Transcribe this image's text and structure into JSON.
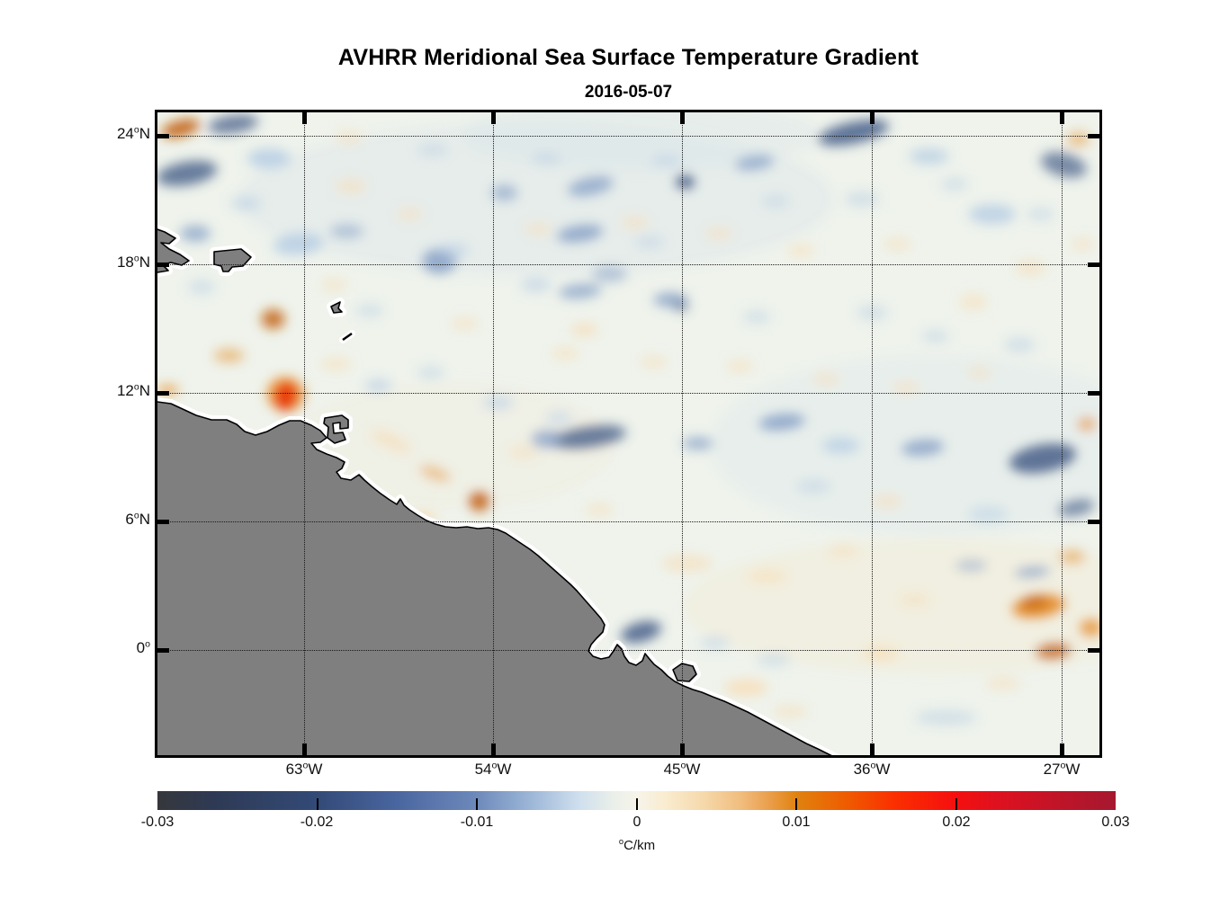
{
  "figure": {
    "title": "AVHRR Meridional Sea Surface Temperature Gradient",
    "date": "2016-05-07"
  },
  "degree": "o",
  "axes": {
    "x": {
      "ticks": [
        {
          "num": "63",
          "dir": "W"
        },
        {
          "num": "54",
          "dir": "W"
        },
        {
          "num": "45",
          "dir": "W"
        },
        {
          "num": "36",
          "dir": "W"
        },
        {
          "num": "27",
          "dir": "W"
        }
      ]
    },
    "y": {
      "ticks": [
        {
          "num": "24",
          "dir": "N"
        },
        {
          "num": "18",
          "dir": "N"
        },
        {
          "num": "12",
          "dir": "N"
        },
        {
          "num": "6",
          "dir": "N"
        },
        {
          "num": "0",
          "dir": ""
        }
      ]
    }
  },
  "colorbar": {
    "ticks": [
      "-0.03",
      "-0.02",
      "-0.01",
      "0",
      "0.01",
      "0.02",
      "0.03"
    ],
    "unit_text": "C/km"
  },
  "chart_data": {
    "type": "heatmap",
    "title": "AVHRR Meridional Sea Surface Temperature Gradient",
    "subtitle": "2016-05-07",
    "variable": "meridional sea surface temperature gradient",
    "units": "degC/km",
    "lon_range_deg_west": [
      70.0,
      25.2
    ],
    "lat_range_deg_north": [
      -4.95,
      25.05
    ],
    "x_tick_lons_deg_west": [
      63,
      54,
      45,
      36,
      27
    ],
    "y_tick_lats_deg_north": [
      24,
      18,
      12,
      6,
      0
    ],
    "grid": true,
    "land_color": "#7f7f7f",
    "coast_outline_color": "#000000",
    "coast_nodata_halo_color": "#ffffff",
    "ocean_background": "#eff3ec",
    "colorbar": {
      "min": -0.03,
      "max": 0.03,
      "tick_values": [
        -0.03,
        -0.02,
        -0.01,
        0,
        0.01,
        0.02,
        0.03
      ],
      "label": "degC/km",
      "orientation": "horizontal",
      "stops": [
        {
          "p": 0.0,
          "c": "#35373b"
        },
        {
          "p": 0.06,
          "c": "#2e3a55"
        },
        {
          "p": 0.167,
          "c": "#334a77"
        },
        {
          "p": 0.25,
          "c": "#4a66a0"
        },
        {
          "p": 0.333,
          "c": "#6d89ba"
        },
        {
          "p": 0.39,
          "c": "#9db7d8"
        },
        {
          "p": 0.44,
          "c": "#cfdfee"
        },
        {
          "p": 0.475,
          "c": "#e9efe9"
        },
        {
          "p": 0.5,
          "c": "#f7f4ea"
        },
        {
          "p": 0.53,
          "c": "#f9ecd0"
        },
        {
          "p": 0.57,
          "c": "#f6d9ab"
        },
        {
          "p": 0.61,
          "c": "#f0bc7c"
        },
        {
          "p": 0.64,
          "c": "#ea9d48"
        },
        {
          "p": 0.667,
          "c": "#e0820f"
        },
        {
          "p": 0.72,
          "c": "#ef5b00"
        },
        {
          "p": 0.77,
          "c": "#fb2e00"
        },
        {
          "p": 0.833,
          "c": "#f50f0f"
        },
        {
          "p": 0.88,
          "c": "#dd1120"
        },
        {
          "p": 0.94,
          "c": "#c01428"
        },
        {
          "p": 1.0,
          "c": "#a5182f"
        }
      ]
    },
    "palette": {
      "deep_blue": "#465e88",
      "blue": "#7e9ac3",
      "light_blue": "#b9cfe4",
      "peach": "#f7dcb4",
      "orange": "#e68f2b",
      "deep_orange": "#c2600e",
      "red": "#e8380e"
    },
    "features_note": "approximate gradient anomalies [lon_degE, lat_degN, rx_px, ry_px, color_key, opacity, rotation_deg]; blue = negative, orange/red = positive",
    "features": [
      [
        -52,
        21,
        330,
        85,
        "light_blue",
        0.16,
        0
      ],
      [
        -33,
        9.5,
        250,
        100,
        "light_blue",
        0.13,
        0
      ],
      [
        -33,
        2,
        280,
        75,
        "peach",
        0.18,
        0
      ],
      [
        -56,
        9.5,
        180,
        70,
        "peach",
        0.1,
        0
      ],
      [
        -47,
        24,
        200,
        40,
        "light_blue",
        0.15,
        0
      ],
      [
        -68.9,
        24.3,
        22,
        9,
        "deep_orange",
        0.9,
        -15
      ],
      [
        -66.4,
        24.5,
        28,
        10,
        "deep_blue",
        0.75,
        -8
      ],
      [
        -68.6,
        22.2,
        34,
        13,
        "deep_blue",
        0.8,
        -10
      ],
      [
        -64.7,
        22.9,
        24,
        11,
        "light_blue",
        0.9,
        0
      ],
      [
        -68.2,
        19.4,
        17,
        9,
        "blue",
        0.7,
        0
      ],
      [
        -63.3,
        18.9,
        28,
        12,
        "light_blue",
        0.9,
        -5
      ],
      [
        -56.6,
        18.1,
        19,
        14,
        "blue",
        0.8,
        0
      ],
      [
        -53.5,
        21.3,
        15,
        9,
        "blue",
        0.6,
        0
      ],
      [
        -49.9,
        19.4,
        26,
        9,
        "blue",
        0.8,
        -8
      ],
      [
        -49.4,
        21.6,
        26,
        10,
        "blue",
        0.7,
        -12
      ],
      [
        -44.9,
        21.8,
        11,
        8,
        "deep_blue",
        0.95,
        0
      ],
      [
        -41.6,
        22.7,
        22,
        8,
        "blue",
        0.7,
        -8
      ],
      [
        -36.9,
        24.1,
        40,
        12,
        "deep_blue",
        0.85,
        -12
      ],
      [
        -33.3,
        23.0,
        22,
        9,
        "light_blue",
        0.8,
        0
      ],
      [
        -26.9,
        22.6,
        26,
        13,
        "deep_blue",
        0.7,
        15
      ],
      [
        -30.3,
        20.3,
        26,
        11,
        "light_blue",
        0.85,
        0
      ],
      [
        -49.9,
        16.7,
        24,
        8,
        "blue",
        0.7,
        -5
      ],
      [
        -45.6,
        16.3,
        19,
        8,
        "blue",
        0.75,
        0
      ],
      [
        -45.1,
        16.0,
        8,
        5,
        "deep_blue",
        0.7,
        0
      ],
      [
        -64.5,
        15.4,
        13,
        11,
        "deep_orange",
        0.85,
        0
      ],
      [
        -66.6,
        13.7,
        17,
        8,
        "orange",
        0.5,
        0
      ],
      [
        -63.9,
        11.9,
        21,
        19,
        "orange",
        0.85,
        10
      ],
      [
        -63.9,
        11.8,
        12,
        16,
        "red",
        1,
        10
      ],
      [
        -69.5,
        12.1,
        12,
        5,
        "orange",
        0.8,
        0
      ],
      [
        -59.5,
        12.3,
        15,
        7,
        "light_blue",
        0.7,
        0
      ],
      [
        -49.5,
        9.9,
        42,
        12,
        "deep_blue",
        0.8,
        -8
      ],
      [
        -51.5,
        9.8,
        17,
        10,
        "blue",
        0.7,
        0
      ],
      [
        -44.3,
        9.6,
        17,
        7,
        "blue",
        0.7,
        0
      ],
      [
        -40.3,
        10.6,
        26,
        9,
        "blue",
        0.8,
        -6
      ],
      [
        -37.5,
        9.5,
        21,
        9,
        "light_blue",
        0.8,
        0
      ],
      [
        -33.6,
        9.4,
        24,
        9,
        "blue",
        0.75,
        -5
      ],
      [
        -27.9,
        8.9,
        38,
        16,
        "deep_blue",
        0.85,
        -10
      ],
      [
        -26.3,
        6.6,
        21,
        9,
        "deep_blue",
        0.65,
        -12
      ],
      [
        -54.7,
        6.9,
        12,
        11,
        "deep_orange",
        0.9,
        0
      ],
      [
        -57.4,
        6.1,
        15,
        7,
        "peach",
        0.9,
        0
      ],
      [
        -58.9,
        9.7,
        24,
        7,
        "peach",
        0.65,
        25
      ],
      [
        -56.8,
        8.2,
        18,
        7,
        "orange",
        0.45,
        20
      ],
      [
        -47.0,
        0.8,
        23,
        11,
        "deep_blue",
        0.85,
        -15
      ],
      [
        -28.1,
        2.0,
        30,
        13,
        "orange",
        0.95,
        -8
      ],
      [
        -28.3,
        2.2,
        15,
        8,
        "deep_orange",
        0.75,
        -8
      ],
      [
        -28.4,
        3.6,
        20,
        6,
        "blue",
        0.7,
        -5
      ],
      [
        -27.4,
        -0.1,
        20,
        9,
        "deep_orange",
        0.8,
        -5
      ],
      [
        -25.6,
        1.0,
        13,
        10,
        "orange",
        0.8,
        0
      ],
      [
        -42.0,
        -1.8,
        24,
        9,
        "peach",
        0.8,
        0
      ],
      [
        -35.6,
        -0.2,
        20,
        8,
        "peach",
        0.7,
        0
      ],
      [
        -31.3,
        3.9,
        18,
        7,
        "blue",
        0.45,
        0
      ],
      [
        -32.5,
        -3.2,
        34,
        8,
        "light_blue",
        0.55,
        0
      ],
      [
        -30.5,
        6.3,
        22,
        9,
        "light_blue",
        0.55,
        0
      ],
      [
        -49.7,
        14.9,
        15,
        7,
        "peach",
        0.7,
        0
      ],
      [
        -60.8,
        21.6,
        17,
        8,
        "peach",
        0.55,
        0
      ],
      [
        -58.0,
        20.3,
        14,
        7,
        "peach",
        0.5,
        0
      ],
      [
        -51.9,
        19.6,
        15,
        7,
        "peach",
        0.5,
        0
      ],
      [
        -47.3,
        19.9,
        15,
        7,
        "peach",
        0.55,
        0
      ],
      [
        -43.3,
        19.4,
        15,
        7,
        "peach",
        0.5,
        0
      ],
      [
        -39.4,
        18.6,
        15,
        7,
        "peach",
        0.55,
        0
      ],
      [
        -34.8,
        18.9,
        15,
        7,
        "peach",
        0.5,
        0
      ],
      [
        -28.5,
        17.8,
        17,
        8,
        "peach",
        0.6,
        0
      ],
      [
        -31.2,
        16.2,
        15,
        9,
        "peach",
        0.55,
        0
      ],
      [
        -61.6,
        17.0,
        14,
        7,
        "peach",
        0.5,
        0
      ],
      [
        -55.4,
        15.2,
        15,
        7,
        "peach",
        0.5,
        0
      ],
      [
        -50.6,
        13.8,
        15,
        7,
        "peach",
        0.55,
        0
      ],
      [
        -46.4,
        13.4,
        15,
        7,
        "peach",
        0.5,
        0
      ],
      [
        -42.3,
        13.2,
        15,
        7,
        "peach",
        0.5,
        0
      ],
      [
        -38.2,
        12.6,
        15,
        7,
        "peach",
        0.5,
        0
      ],
      [
        -34.4,
        12.2,
        15,
        7,
        "peach",
        0.5,
        0
      ],
      [
        -30.9,
        12.9,
        13,
        7,
        "peach",
        0.45,
        0
      ],
      [
        -52.6,
        9.2,
        15,
        7,
        "peach",
        0.5,
        0
      ],
      [
        -49.0,
        6.5,
        15,
        7,
        "peach",
        0.5,
        0
      ],
      [
        -44.8,
        4.0,
        28,
        9,
        "peach",
        0.6,
        0
      ],
      [
        -41.0,
        3.4,
        22,
        8,
        "peach",
        0.55,
        0
      ],
      [
        -37.4,
        4.6,
        17,
        7,
        "peach",
        0.5,
        0
      ],
      [
        -39.9,
        -2.9,
        19,
        7,
        "peach",
        0.5,
        0
      ],
      [
        -55.9,
        18.6,
        17,
        8,
        "light_blue",
        0.6,
        0
      ],
      [
        -59.9,
        15.8,
        15,
        7,
        "light_blue",
        0.5,
        0
      ],
      [
        -57.0,
        12.9,
        15,
        7,
        "light_blue",
        0.5,
        0
      ],
      [
        -53.8,
        11.5,
        17,
        8,
        "light_blue",
        0.6,
        0
      ],
      [
        -50.9,
        10.8,
        15,
        7,
        "light_blue",
        0.55,
        0
      ],
      [
        -36.0,
        15.7,
        17,
        8,
        "light_blue",
        0.5,
        0
      ],
      [
        -33.0,
        14.6,
        15,
        7,
        "light_blue",
        0.5,
        0
      ],
      [
        -29.0,
        14.2,
        17,
        8,
        "light_blue",
        0.55,
        0
      ],
      [
        -41.5,
        15.5,
        15,
        7,
        "light_blue",
        0.5,
        0
      ],
      [
        -48.5,
        17.5,
        20,
        9,
        "blue",
        0.5,
        0
      ],
      [
        -52.0,
        17.0,
        17,
        8,
        "light_blue",
        0.6,
        0
      ],
      [
        -61.0,
        19.5,
        19,
        8,
        "blue",
        0.5,
        0
      ],
      [
        -65.8,
        20.8,
        17,
        8,
        "light_blue",
        0.6,
        0
      ],
      [
        -67.9,
        16.9,
        15,
        8,
        "light_blue",
        0.5,
        0
      ],
      [
        -38.8,
        7.6,
        19,
        8,
        "light_blue",
        0.5,
        0
      ],
      [
        -35.3,
        6.9,
        17,
        8,
        "peach",
        0.5,
        0
      ],
      [
        -43.5,
        0.3,
        17,
        7,
        "light_blue",
        0.5,
        0
      ],
      [
        -34.0,
        2.3,
        17,
        7,
        "peach",
        0.5,
        0
      ],
      [
        -29.8,
        -1.6,
        19,
        7,
        "peach",
        0.5,
        0
      ],
      [
        -26.5,
        4.3,
        15,
        8,
        "orange",
        0.5,
        0
      ],
      [
        -36.5,
        21.0,
        19,
        8,
        "light_blue",
        0.55,
        0
      ],
      [
        -40.6,
        20.9,
        15,
        7,
        "light_blue",
        0.5,
        0
      ],
      [
        -32.1,
        21.7,
        15,
        7,
        "light_blue",
        0.5,
        0
      ],
      [
        -28.0,
        20.3,
        15,
        7,
        "light_blue",
        0.5,
        0
      ],
      [
        -26.0,
        18.9,
        13,
        7,
        "peach",
        0.5,
        0
      ],
      [
        -45.8,
        22.8,
        17,
        7,
        "light_blue",
        0.55,
        0
      ],
      [
        -51.5,
        22.9,
        17,
        7,
        "light_blue",
        0.5,
        0
      ],
      [
        -56.9,
        23.3,
        17,
        7,
        "light_blue",
        0.5,
        0
      ],
      [
        -60.9,
        23.9,
        15,
        7,
        "peach",
        0.5,
        0
      ],
      [
        -26.2,
        23.8,
        13,
        8,
        "orange",
        0.5,
        0
      ],
      [
        -25.8,
        10.5,
        11,
        8,
        "orange",
        0.6,
        0
      ],
      [
        -61.5,
        13.3,
        17,
        7,
        "peach",
        0.55,
        0
      ],
      [
        -40.7,
        -0.5,
        19,
        7,
        "light_blue",
        0.5,
        0
      ],
      [
        -46.6,
        19.0,
        16,
        7,
        "light_blue",
        0.5,
        0
      ]
    ]
  }
}
